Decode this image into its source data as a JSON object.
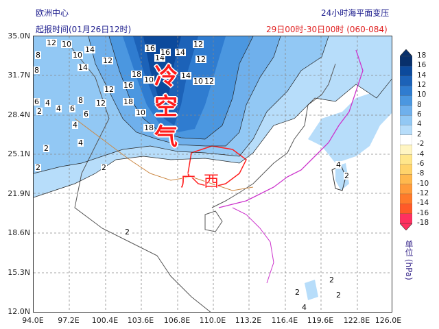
{
  "header": {
    "source": "欧洲中心",
    "init_time": "起报时间(01月26日12时)",
    "product": "24小时海平面变压",
    "valid_period": "29日00时-30日00时 (060-084)"
  },
  "axes": {
    "lat_ticks": [
      "35.0N",
      "31.7N",
      "28.4N",
      "25.1N",
      "21.9N",
      "18.6N",
      "15.3N",
      "12.0N"
    ],
    "lon_ticks": [
      "94.0E",
      "97.2E",
      "100.4E",
      "103.6E",
      "106.8E",
      "110.0E",
      "113.2E",
      "116.4E",
      "119.6E",
      "122.8E",
      "126.0E"
    ]
  },
  "colorbar": {
    "levels": [
      "18",
      "16",
      "14",
      "12",
      "10",
      "8",
      "6",
      "4",
      "2",
      "-2",
      "-4",
      "-6",
      "-8",
      "-10",
      "-12",
      "-14",
      "-16",
      "-18"
    ],
    "colors": [
      "#08306b",
      "#0c4a9c",
      "#1c62b8",
      "#2f7cd0",
      "#4b97e0",
      "#6fb0ec",
      "#92c8f4",
      "#b7ddfa",
      "#ffffff",
      "#fff5c2",
      "#ffe68a",
      "#ffd36a",
      "#ffb84d",
      "#ff9a3a",
      "#ff7a2a",
      "#ff5a28",
      "#ff3060"
    ],
    "unit": "单位 (hPa)"
  },
  "annotations": {
    "cold_air_chars": [
      "冷",
      "空",
      "气"
    ],
    "region_chars": [
      "广",
      "西"
    ]
  },
  "contour_labels": [
    "8",
    "12",
    "10",
    "14",
    "16",
    "12",
    "14",
    "12",
    "14",
    "10",
    "18",
    "10",
    "14",
    "16",
    "18",
    "10",
    "12",
    "16",
    "10",
    "12",
    "14",
    "12",
    "18",
    "12",
    "8",
    "6",
    "4",
    "2",
    "4",
    "6",
    "8",
    "6",
    "4",
    "2",
    "2",
    "2",
    "4",
    "2",
    "2",
    "2",
    "4",
    "2",
    "2",
    "4"
  ]
}
